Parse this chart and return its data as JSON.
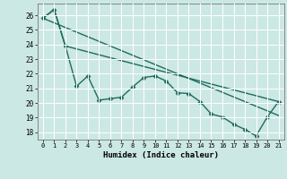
{
  "xlabel": "Humidex (Indice chaleur)",
  "ylabel": "",
  "background_color": "#cce8e4",
  "grid_color": "#ffffff",
  "line_color": "#1e6b5e",
  "xlim": [
    -0.5,
    21.5
  ],
  "ylim": [
    17.5,
    26.8
  ],
  "xticks": [
    0,
    1,
    2,
    3,
    4,
    5,
    6,
    7,
    8,
    9,
    10,
    11,
    12,
    13,
    14,
    15,
    16,
    17,
    18,
    19,
    20,
    21
  ],
  "yticks": [
    18,
    19,
    20,
    21,
    22,
    23,
    24,
    25,
    26
  ],
  "line1": {
    "x": [
      0,
      1,
      2,
      3,
      4,
      5,
      6,
      7,
      8,
      9,
      10,
      11,
      12,
      13,
      14,
      15,
      16,
      17,
      18,
      19,
      20,
      21
    ],
    "y": [
      25.8,
      26.4,
      23.9,
      21.15,
      21.85,
      20.2,
      20.3,
      20.4,
      21.1,
      21.75,
      21.85,
      21.5,
      20.7,
      20.65,
      20.1,
      19.25,
      19.05,
      18.55,
      18.2,
      17.75,
      19.05,
      20.1
    ],
    "marker": "D",
    "markersize": 2.5,
    "linewidth": 1.0
  },
  "line2": {
    "x": [
      0,
      1,
      2,
      21
    ],
    "y": [
      25.8,
      26.4,
      23.9,
      20.1
    ],
    "linewidth": 1.0
  },
  "line3": {
    "x": [
      0,
      21
    ],
    "y": [
      25.8,
      19.15
    ],
    "linewidth": 1.0
  }
}
